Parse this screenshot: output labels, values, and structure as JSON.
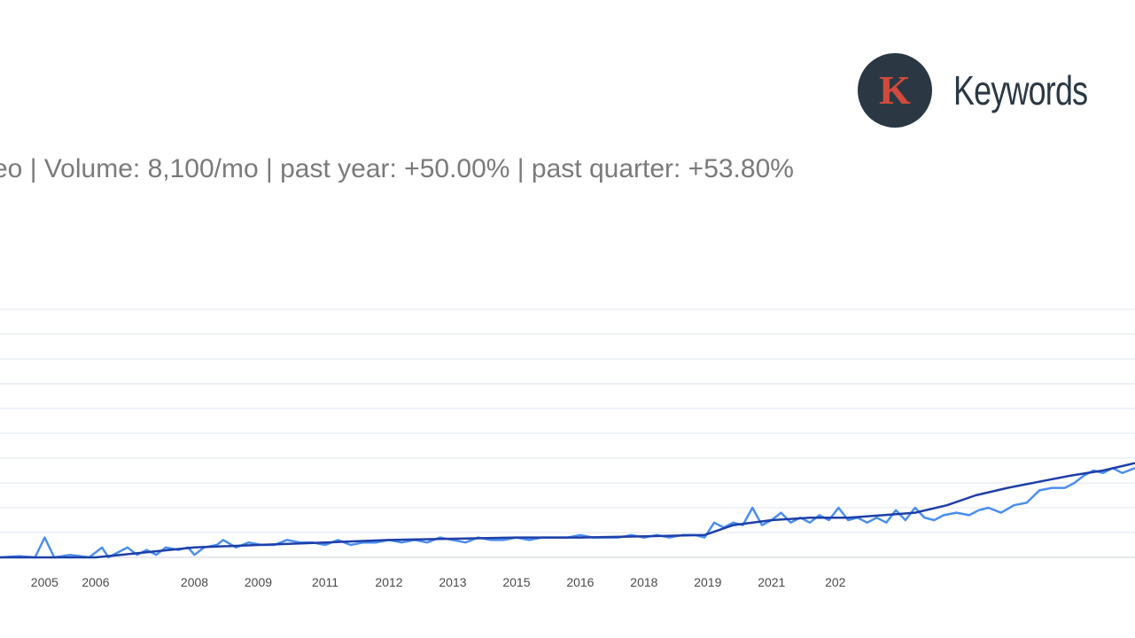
{
  "brand": {
    "logo_letter": "K",
    "name": "Keywords",
    "logo_bg": "#2b3844",
    "logo_letter_color": "#d24a3c"
  },
  "stats_line": "eo |  Volume: 8,100/mo | past year: +50.00% | past quarter: +53.80%",
  "chart_data": {
    "type": "line",
    "title": "",
    "xlabel": "",
    "ylabel": "",
    "xlim": [
      2004.5,
      2022.3
    ],
    "ylim": [
      0,
      100
    ],
    "grid": "horizontal",
    "x_ticks": [
      {
        "label": "2005",
        "x": 2005.2
      },
      {
        "label": "2006",
        "x": 2006.0
      },
      {
        "label": "2008",
        "x": 2007.55
      },
      {
        "label": "2009",
        "x": 2008.55
      },
      {
        "label": "2011",
        "x": 2009.6
      },
      {
        "label": "2012",
        "x": 2010.6
      },
      {
        "label": "2013",
        "x": 2011.6
      },
      {
        "label": "2015",
        "x": 2012.6
      },
      {
        "label": "2016",
        "x": 2013.6
      },
      {
        "label": "2018",
        "x": 2014.6
      },
      {
        "label": "2019",
        "x": 2015.6
      },
      {
        "label": "2021",
        "x": 2016.6
      },
      {
        "label": "202",
        "x": 2017.6
      }
    ],
    "series": [
      {
        "color": "#4a8ef0",
        "values": [
          [
            2004.5,
            0
          ],
          [
            2004.8,
            0.5
          ],
          [
            2005.05,
            0
          ],
          [
            2005.2,
            8
          ],
          [
            2005.35,
            0
          ],
          [
            2005.6,
            1
          ],
          [
            2005.9,
            0
          ],
          [
            2006.1,
            4
          ],
          [
            2006.2,
            0
          ],
          [
            2006.35,
            2
          ],
          [
            2006.5,
            4
          ],
          [
            2006.65,
            1
          ],
          [
            2006.8,
            3
          ],
          [
            2006.95,
            1
          ],
          [
            2007.1,
            4
          ],
          [
            2007.3,
            3
          ],
          [
            2007.45,
            4
          ],
          [
            2007.55,
            1
          ],
          [
            2007.7,
            4
          ],
          [
            2007.9,
            5
          ],
          [
            2008.0,
            7
          ],
          [
            2008.2,
            4
          ],
          [
            2008.4,
            6
          ],
          [
            2008.6,
            5
          ],
          [
            2008.8,
            5
          ],
          [
            2009.0,
            7
          ],
          [
            2009.2,
            6
          ],
          [
            2009.4,
            6
          ],
          [
            2009.6,
            5
          ],
          [
            2009.8,
            7
          ],
          [
            2010.0,
            5
          ],
          [
            2010.2,
            6
          ],
          [
            2010.4,
            6
          ],
          [
            2010.6,
            7
          ],
          [
            2010.8,
            6
          ],
          [
            2011.0,
            7
          ],
          [
            2011.2,
            6
          ],
          [
            2011.4,
            8
          ],
          [
            2011.6,
            7
          ],
          [
            2011.8,
            6
          ],
          [
            2012.0,
            8
          ],
          [
            2012.2,
            7
          ],
          [
            2012.4,
            7
          ],
          [
            2012.6,
            8
          ],
          [
            2012.8,
            7
          ],
          [
            2013.0,
            8
          ],
          [
            2013.2,
            8
          ],
          [
            2013.4,
            8
          ],
          [
            2013.6,
            9
          ],
          [
            2013.8,
            8
          ],
          [
            2014.0,
            8
          ],
          [
            2014.2,
            8
          ],
          [
            2014.4,
            9
          ],
          [
            2014.6,
            8
          ],
          [
            2014.8,
            9
          ],
          [
            2015.0,
            8
          ],
          [
            2015.2,
            9
          ],
          [
            2015.4,
            9
          ],
          [
            2015.55,
            8
          ],
          [
            2015.7,
            14
          ],
          [
            2015.85,
            12
          ],
          [
            2016.0,
            14
          ],
          [
            2016.15,
            13
          ],
          [
            2016.3,
            20
          ],
          [
            2016.45,
            13
          ],
          [
            2016.6,
            15
          ],
          [
            2016.75,
            18
          ],
          [
            2016.9,
            14
          ],
          [
            2017.05,
            16
          ],
          [
            2017.2,
            14
          ],
          [
            2017.35,
            17
          ],
          [
            2017.5,
            15
          ],
          [
            2017.65,
            20
          ],
          [
            2017.8,
            15
          ],
          [
            2017.95,
            16
          ],
          [
            2018.1,
            14
          ],
          [
            2018.25,
            16
          ],
          [
            2018.4,
            14
          ],
          [
            2018.55,
            19
          ],
          [
            2018.7,
            15
          ],
          [
            2018.85,
            20
          ],
          [
            2019.0,
            16
          ],
          [
            2019.15,
            15
          ],
          [
            2019.3,
            17
          ],
          [
            2019.5,
            18
          ],
          [
            2019.7,
            17
          ],
          [
            2019.85,
            19
          ],
          [
            2020.0,
            20
          ],
          [
            2020.2,
            18
          ],
          [
            2020.4,
            21
          ],
          [
            2020.6,
            22
          ],
          [
            2020.8,
            27
          ],
          [
            2021.0,
            28
          ],
          [
            2021.2,
            28
          ],
          [
            2021.35,
            30
          ],
          [
            2021.5,
            33
          ],
          [
            2021.65,
            35
          ],
          [
            2021.8,
            34
          ],
          [
            2021.95,
            36
          ],
          [
            2022.1,
            34
          ],
          [
            2022.3,
            36
          ]
        ]
      },
      {
        "color": "#1e3fa8",
        "values": [
          [
            2004.5,
            0
          ],
          [
            2006.0,
            0
          ],
          [
            2007.55,
            4
          ],
          [
            2008.55,
            5
          ],
          [
            2009.6,
            6
          ],
          [
            2010.6,
            7
          ],
          [
            2011.6,
            7.5
          ],
          [
            2012.6,
            8
          ],
          [
            2013.6,
            8
          ],
          [
            2014.6,
            8.5
          ],
          [
            2015.55,
            9
          ],
          [
            2016.0,
            13
          ],
          [
            2016.6,
            15
          ],
          [
            2017.2,
            16
          ],
          [
            2017.8,
            16
          ],
          [
            2018.35,
            17
          ],
          [
            2018.85,
            18
          ],
          [
            2019.35,
            21
          ],
          [
            2019.8,
            25
          ],
          [
            2020.3,
            28
          ],
          [
            2020.9,
            31
          ],
          [
            2021.3,
            33
          ],
          [
            2021.8,
            35
          ],
          [
            2022.3,
            38
          ]
        ]
      }
    ]
  }
}
